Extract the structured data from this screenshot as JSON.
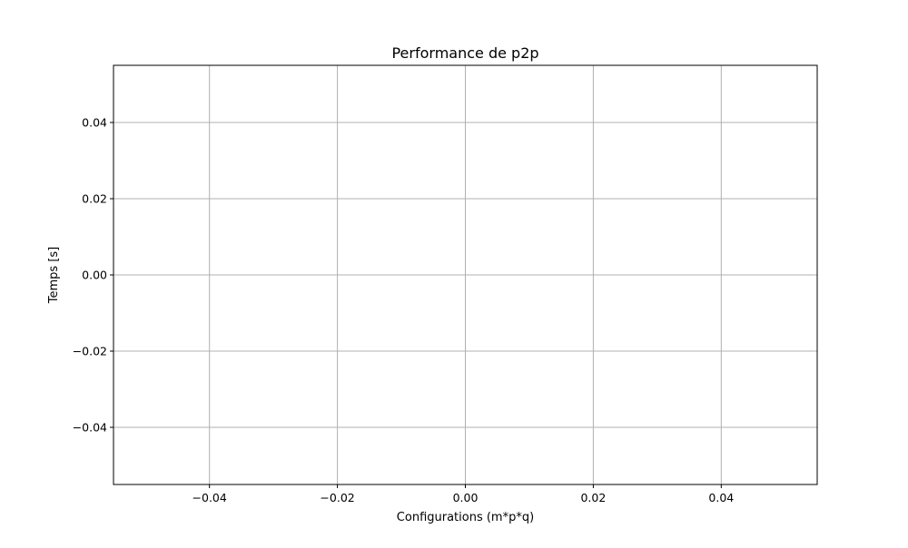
{
  "chart_data": {
    "type": "line",
    "title": "Performance de p2p",
    "xlabel": "Configurations (m*p*q)",
    "ylabel": "Temps [s]",
    "xlim": [
      -0.055,
      0.055
    ],
    "ylim": [
      -0.055,
      0.055
    ],
    "xticks": [
      -0.04,
      -0.02,
      0.0,
      0.02,
      0.04
    ],
    "yticks": [
      -0.04,
      -0.02,
      0.0,
      0.02,
      0.04
    ],
    "xtick_labels": [
      "−0.04",
      "−0.02",
      "0.00",
      "0.02",
      "0.04"
    ],
    "ytick_labels": [
      "−0.04",
      "−0.02",
      "0.00",
      "0.02",
      "0.04"
    ],
    "grid": true,
    "series": [],
    "colors": {
      "grid": "#b0b0b0",
      "axes": "#000000",
      "background": "#ffffff"
    }
  }
}
